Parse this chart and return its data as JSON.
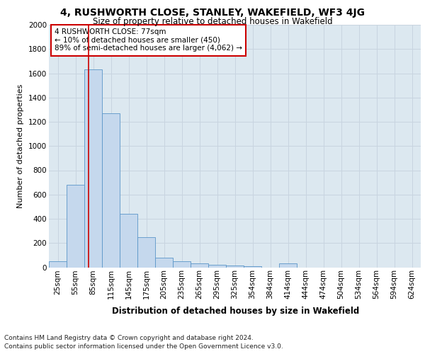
{
  "title1": "4, RUSHWORTH CLOSE, STANLEY, WAKEFIELD, WF3 4JG",
  "title2": "Size of property relative to detached houses in Wakefield",
  "xlabel": "Distribution of detached houses by size in Wakefield",
  "ylabel": "Number of detached properties",
  "footer1": "Contains HM Land Registry data © Crown copyright and database right 2024.",
  "footer2": "Contains public sector information licensed under the Open Government Licence v3.0.",
  "categories": [
    "25sqm",
    "55sqm",
    "85sqm",
    "115sqm",
    "145sqm",
    "175sqm",
    "205sqm",
    "235sqm",
    "265sqm",
    "295sqm",
    "325sqm",
    "354sqm",
    "384sqm",
    "414sqm",
    "444sqm",
    "474sqm",
    "504sqm",
    "534sqm",
    "564sqm",
    "594sqm",
    "624sqm"
  ],
  "values": [
    50,
    680,
    1630,
    1270,
    440,
    250,
    80,
    50,
    30,
    20,
    15,
    10,
    0,
    30,
    0,
    0,
    0,
    0,
    0,
    0,
    0
  ],
  "bar_color": "#c5d8ed",
  "bar_edge_color": "#5a96c8",
  "annotation_box_text": "4 RUSHWORTH CLOSE: 77sqm\n← 10% of detached houses are smaller (450)\n89% of semi-detached houses are larger (4,062) →",
  "annotation_box_color": "#ffffff",
  "annotation_box_edge_color": "#cc0000",
  "vline_color": "#cc0000",
  "ylim": [
    0,
    2000
  ],
  "yticks": [
    0,
    200,
    400,
    600,
    800,
    1000,
    1200,
    1400,
    1600,
    1800,
    2000
  ],
  "grid_color": "#c8d4e0",
  "plot_bg_color": "#dce8f0",
  "title1_fontsize": 10,
  "title2_fontsize": 8.5,
  "xlabel_fontsize": 8.5,
  "ylabel_fontsize": 8,
  "annotation_fontsize": 7.5,
  "tick_fontsize": 7.5,
  "footer_fontsize": 6.5
}
